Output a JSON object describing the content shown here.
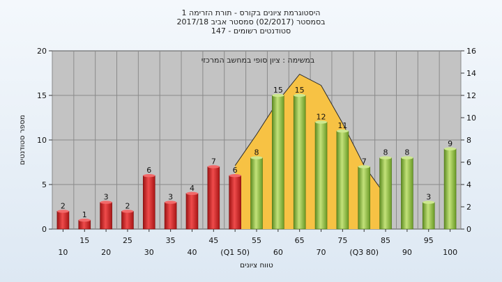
{
  "chart_data": {
    "type": "bar",
    "title_lines": [
      "היסטוגרמת ציונים בקורס - תורת הזרימה 1",
      "בסמסטר  (02/2017)  סמסטר אביב 2017/18",
      "סטודנטים רשומים - 147"
    ],
    "annotation": "במשימה : ציון סופי במחשב המרכזי",
    "xlabel": "טווח ציונים",
    "ylabel": "מספר סטודנטים",
    "categories": [
      "10",
      "15",
      "20",
      "25",
      "30",
      "35",
      "40",
      "45",
      "(Q1 50)",
      "55",
      "60",
      "65",
      "70",
      "75",
      "(Q3 80)",
      "85",
      "90",
      "95",
      "100"
    ],
    "values": [
      2,
      1,
      3,
      2,
      6,
      3,
      4,
      7,
      6,
      8,
      15,
      15,
      12,
      11,
      7,
      8,
      8,
      3,
      9
    ],
    "ylim": [
      0,
      20
    ],
    "yticks": [
      0,
      5,
      10,
      15,
      20
    ],
    "y2lim": [
      0,
      16
    ],
    "y2ticks": [
      0,
      2,
      4,
      6,
      8,
      10,
      12,
      14,
      16
    ],
    "bar_colors": [
      "red",
      "red",
      "red",
      "red",
      "red",
      "red",
      "red",
      "red",
      "red",
      "green",
      "green",
      "green",
      "green",
      "green",
      "green",
      "green",
      "green",
      "green",
      "green"
    ],
    "curve": {
      "type": "area",
      "axis": "right",
      "x": [
        "(Q1 50)",
        "55",
        "60",
        "65",
        "70",
        "75",
        "(Q3 80)",
        "85"
      ],
      "values": [
        5.7,
        8.5,
        11.5,
        13.9,
        12.9,
        9.5,
        5.7,
        3.0
      ]
    },
    "grid": true,
    "colors": {
      "red": "#d62a2a",
      "green": "#94c63f",
      "area": "#f7c244",
      "plot_bg": "#c3c3c3"
    }
  }
}
